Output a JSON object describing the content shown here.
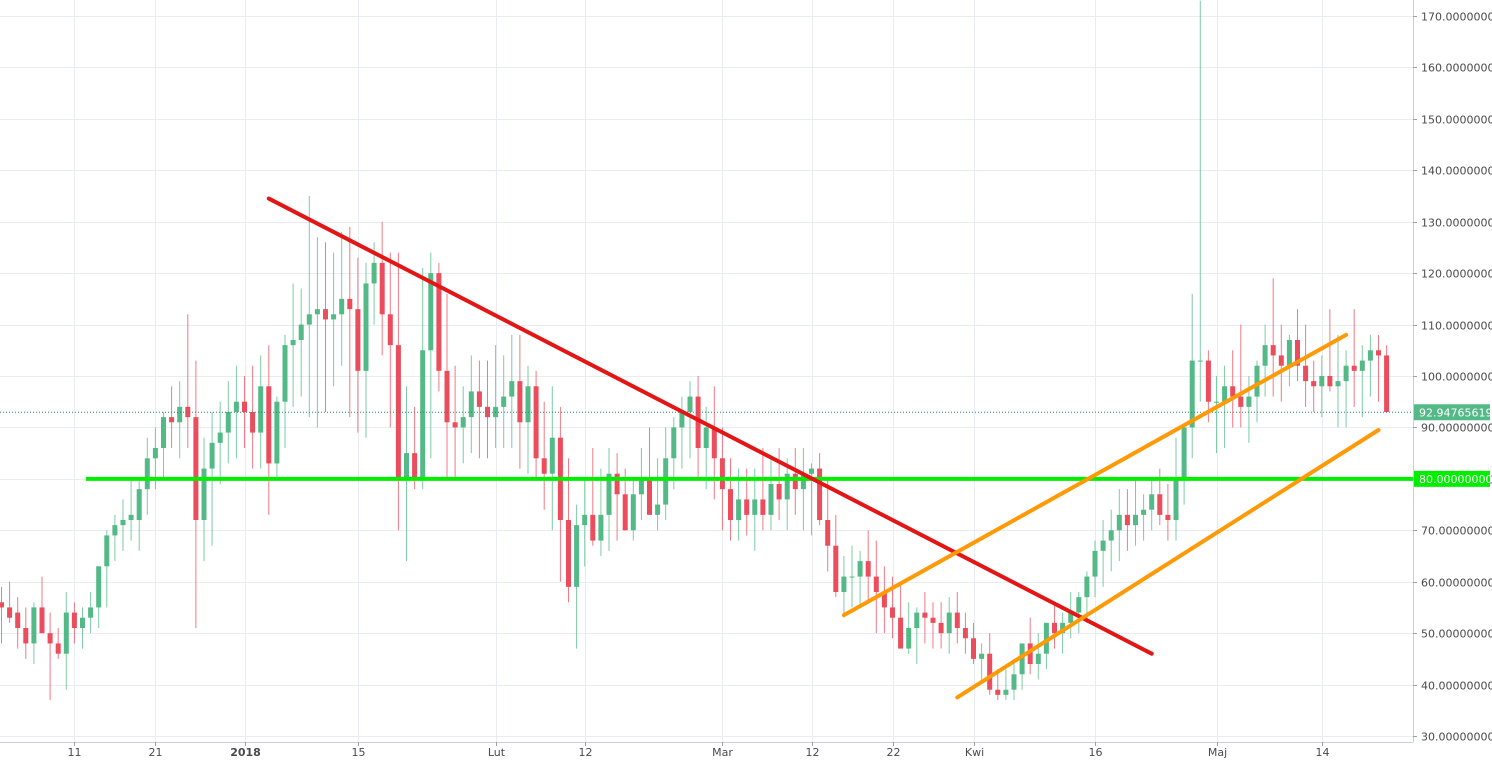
{
  "chart_data": {
    "type": "candlestick",
    "title": "",
    "xlabel": "",
    "ylabel": "",
    "ylim": [
      28,
      173
    ],
    "grid": true,
    "y_ticks": [
      {
        "value": 30,
        "label": "30.00000000"
      },
      {
        "value": 40,
        "label": "40.00000000"
      },
      {
        "value": 50,
        "label": "50.00000000"
      },
      {
        "value": 60,
        "label": "60.00000000"
      },
      {
        "value": 70,
        "label": "70.00000000"
      },
      {
        "value": 80,
        "label": "80.00000000"
      },
      {
        "value": 90,
        "label": "90.00000000"
      },
      {
        "value": 100,
        "label": "100.00000000"
      },
      {
        "value": 110,
        "label": "110.00000000"
      },
      {
        "value": 120,
        "label": "120.00000000"
      },
      {
        "value": 130,
        "label": "130.00000000"
      },
      {
        "value": 140,
        "label": "140.00000000"
      },
      {
        "value": 150,
        "label": "150.00000000"
      },
      {
        "value": 160,
        "label": "160.00000000"
      },
      {
        "value": 170,
        "label": "170.00000000"
      }
    ],
    "x_ticks": [
      {
        "index": 9,
        "label": "11",
        "bold": false
      },
      {
        "index": 19,
        "label": "21",
        "bold": false
      },
      {
        "index": 30,
        "label": "2018",
        "bold": true
      },
      {
        "index": 44,
        "label": "15",
        "bold": false
      },
      {
        "index": 61,
        "label": "Lut",
        "bold": false
      },
      {
        "index": 72,
        "label": "12",
        "bold": false
      },
      {
        "index": 89,
        "label": "Mar",
        "bold": false
      },
      {
        "index": 100,
        "label": "12",
        "bold": false
      },
      {
        "index": 110,
        "label": "22",
        "bold": false
      },
      {
        "index": 120,
        "label": "Kwi",
        "bold": false
      },
      {
        "index": 135,
        "label": "16",
        "bold": false
      },
      {
        "index": 150,
        "label": "Maj",
        "bold": false
      },
      {
        "index": 163,
        "label": "14",
        "bold": false
      }
    ],
    "colors": {
      "up": "#53b987",
      "down": "#eb4d5c",
      "grid": "#e9edf2",
      "axis_text": "#4a4a4a",
      "support": "#00ee00",
      "downtrend": "#e41515",
      "channel": "#ff9a06",
      "price_line": "#1e8b6e",
      "price_tag": "#53b987",
      "support_tag": "#00ee00"
    },
    "candles_ohlc": [
      [
        56,
        59,
        48,
        55
      ],
      [
        55,
        60,
        52,
        53
      ],
      [
        54,
        57,
        47,
        51
      ],
      [
        51,
        55,
        45,
        48
      ],
      [
        48,
        56,
        44,
        55
      ],
      [
        55,
        61,
        52,
        50
      ],
      [
        50,
        54,
        37,
        48
      ],
      [
        48,
        51,
        45,
        46
      ],
      [
        46,
        58,
        39,
        54
      ],
      [
        54,
        56,
        48,
        51
      ],
      [
        51,
        55,
        47,
        53
      ],
      [
        53,
        58,
        50,
        55
      ],
      [
        55,
        62,
        51,
        63
      ],
      [
        63,
        70,
        55,
        69
      ],
      [
        69,
        73,
        64,
        71
      ],
      [
        71,
        76,
        66,
        72
      ],
      [
        72,
        80,
        68,
        73
      ],
      [
        72,
        80,
        66,
        78
      ],
      [
        78,
        88,
        73,
        84
      ],
      [
        84,
        90,
        78,
        86
      ],
      [
        86,
        93,
        80,
        92
      ],
      [
        92,
        98,
        86,
        91
      ],
      [
        91,
        99,
        84,
        94
      ],
      [
        94,
        112,
        86,
        92
      ],
      [
        92,
        103,
        51,
        72
      ],
      [
        72,
        88,
        64,
        82
      ],
      [
        82,
        93,
        67,
        87
      ],
      [
        87,
        95,
        79,
        89
      ],
      [
        89,
        99,
        83,
        93
      ],
      [
        93,
        102,
        84,
        95
      ],
      [
        95,
        100,
        86,
        93
      ],
      [
        93,
        102,
        82,
        89
      ],
      [
        89,
        104,
        82,
        98
      ],
      [
        98,
        106,
        73,
        83
      ],
      [
        83,
        96,
        80,
        95
      ],
      [
        95,
        108,
        86,
        106
      ],
      [
        106,
        118,
        94,
        107
      ],
      [
        107,
        117,
        96,
        110
      ],
      [
        110,
        135,
        92,
        112
      ],
      [
        112,
        127,
        90,
        113
      ],
      [
        113,
        126,
        93,
        111
      ],
      [
        111,
        124,
        98,
        112
      ],
      [
        112,
        128,
        102,
        115
      ],
      [
        115,
        129,
        92,
        113
      ],
      [
        113,
        123,
        89,
        101
      ],
      [
        101,
        122,
        88,
        118
      ],
      [
        118,
        126,
        110,
        122
      ],
      [
        122,
        130,
        104,
        112
      ],
      [
        112,
        124,
        90,
        106
      ],
      [
        106,
        124,
        70,
        80
      ],
      [
        80,
        98,
        64,
        85
      ],
      [
        85,
        94,
        78,
        80
      ],
      [
        80,
        121,
        78,
        105
      ],
      [
        105,
        124,
        84,
        120
      ],
      [
        120,
        122,
        97,
        101
      ],
      [
        101,
        116,
        80,
        91
      ],
      [
        91,
        102,
        80,
        90
      ],
      [
        90,
        98,
        83,
        92
      ],
      [
        92,
        104,
        85,
        97
      ],
      [
        97,
        103,
        84,
        94
      ],
      [
        94,
        103,
        84,
        92
      ],
      [
        92,
        106,
        86,
        94
      ],
      [
        94,
        104,
        86,
        96
      ],
      [
        96,
        108,
        86,
        99
      ],
      [
        99,
        108,
        82,
        91
      ],
      [
        91,
        102,
        81,
        98
      ],
      [
        98,
        101,
        80,
        84
      ],
      [
        84,
        95,
        74,
        81
      ],
      [
        81,
        98,
        70,
        88
      ],
      [
        88,
        94,
        60,
        72
      ],
      [
        72,
        84,
        56,
        59
      ],
      [
        59,
        75,
        47,
        71
      ],
      [
        71,
        80,
        63,
        73
      ],
      [
        73,
        86,
        67,
        68
      ],
      [
        68,
        82,
        65,
        73
      ],
      [
        73,
        86,
        66,
        81
      ],
      [
        81,
        85,
        68,
        77
      ],
      [
        77,
        82,
        70,
        70
      ],
      [
        70,
        80,
        68,
        77
      ],
      [
        77,
        86,
        72,
        80
      ],
      [
        80,
        90,
        75,
        73
      ],
      [
        73,
        84,
        70,
        75
      ],
      [
        75,
        90,
        72,
        84
      ],
      [
        84,
        92,
        78,
        90
      ],
      [
        90,
        96,
        82,
        93
      ],
      [
        93,
        99,
        84,
        96
      ],
      [
        96,
        100,
        80,
        86
      ],
      [
        86,
        94,
        78,
        90
      ],
      [
        90,
        98,
        76,
        84
      ],
      [
        84,
        90,
        70,
        78
      ],
      [
        78,
        84,
        68,
        72
      ],
      [
        72,
        82,
        68,
        76
      ],
      [
        76,
        82,
        69,
        73
      ],
      [
        73,
        82,
        66,
        76
      ],
      [
        76,
        86,
        70,
        73
      ],
      [
        73,
        84,
        70,
        79
      ],
      [
        79,
        86,
        72,
        76
      ],
      [
        76,
        84,
        70,
        81
      ],
      [
        81,
        86,
        73,
        78
      ],
      [
        78,
        86,
        70,
        81
      ],
      [
        81,
        83,
        69,
        82
      ],
      [
        82,
        85,
        71,
        72
      ],
      [
        72,
        80,
        62,
        67
      ],
      [
        67,
        73,
        57,
        58
      ],
      [
        58,
        65,
        53,
        61
      ],
      [
        61,
        67,
        55,
        61
      ],
      [
        61,
        66,
        55,
        64
      ],
      [
        64,
        70,
        56,
        61
      ],
      [
        61,
        68,
        50,
        58
      ],
      [
        58,
        63,
        50,
        55
      ],
      [
        55,
        61,
        49,
        53
      ],
      [
        53,
        60,
        47,
        47
      ],
      [
        47,
        56,
        46,
        51
      ],
      [
        51,
        55,
        44,
        54
      ],
      [
        54,
        58,
        48,
        53
      ],
      [
        53,
        56,
        47,
        52
      ],
      [
        52,
        56,
        47,
        50
      ],
      [
        50,
        57,
        46,
        54
      ],
      [
        54,
        58,
        48,
        51
      ],
      [
        51,
        54,
        46,
        49
      ],
      [
        49,
        52,
        44,
        45
      ],
      [
        45,
        48,
        41,
        46
      ],
      [
        46,
        50,
        38,
        39
      ],
      [
        39,
        43,
        37,
        38
      ],
      [
        38,
        43,
        37,
        39
      ],
      [
        39,
        45,
        37,
        42
      ],
      [
        42,
        46,
        39,
        48
      ],
      [
        48,
        53,
        42,
        44
      ],
      [
        44,
        50,
        41,
        46
      ],
      [
        46,
        52,
        43,
        52
      ],
      [
        52,
        56,
        47,
        50
      ],
      [
        50,
        54,
        46,
        52
      ],
      [
        52,
        58,
        49,
        54
      ],
      [
        54,
        58,
        50,
        57
      ],
      [
        57,
        62,
        52,
        61
      ],
      [
        61,
        68,
        57,
        66
      ],
      [
        66,
        72,
        59,
        68
      ],
      [
        68,
        74,
        62,
        70
      ],
      [
        70,
        78,
        64,
        73
      ],
      [
        73,
        78,
        66,
        71
      ],
      [
        71,
        80,
        67,
        73
      ],
      [
        73,
        77,
        68,
        74
      ],
      [
        74,
        80,
        70,
        77
      ],
      [
        77,
        82,
        71,
        73
      ],
      [
        73,
        79,
        68,
        72
      ],
      [
        72,
        88,
        68,
        80
      ],
      [
        80,
        90,
        75,
        90
      ],
      [
        90,
        116,
        84,
        103
      ],
      [
        103,
        173,
        95,
        103
      ],
      [
        103,
        105,
        91,
        95
      ],
      [
        95,
        100,
        85,
        95
      ],
      [
        95,
        102,
        86,
        98
      ],
      [
        98,
        105,
        90,
        96
      ],
      [
        96,
        110,
        90,
        94
      ],
      [
        94,
        100,
        87,
        96
      ],
      [
        96,
        103,
        91,
        102
      ],
      [
        102,
        110,
        96,
        106
      ],
      [
        106,
        119,
        96,
        104
      ],
      [
        104,
        110,
        95,
        102
      ],
      [
        102,
        108,
        98,
        107
      ],
      [
        107,
        113,
        99,
        102
      ],
      [
        102,
        110,
        94,
        99
      ],
      [
        99,
        103,
        93,
        98
      ],
      [
        98,
        104,
        92,
        100
      ],
      [
        100,
        113,
        97,
        98
      ],
      [
        98,
        108,
        90,
        99
      ],
      [
        99,
        105,
        90,
        102
      ],
      [
        102,
        113,
        94,
        101
      ],
      [
        101,
        106,
        92,
        103
      ],
      [
        103,
        108,
        96,
        105
      ],
      [
        105,
        108,
        95,
        104
      ],
      [
        104,
        106,
        95,
        93
      ]
    ],
    "support_level": {
      "value": 80,
      "label": "80.00000000"
    },
    "last_price": {
      "value": 92.94765619,
      "label": "92.94765619"
    },
    "trendlines": [
      {
        "name": "downtrend",
        "color": "downtrend",
        "from": {
          "index": 33,
          "value": 134.5
        },
        "to": {
          "index": 142,
          "value": 46
        }
      },
      {
        "name": "channel-upper",
        "color": "channel",
        "from": {
          "index": 104,
          "value": 53.5
        },
        "to": {
          "index": 166,
          "value": 108
        }
      },
      {
        "name": "channel-lower",
        "color": "channel",
        "from": {
          "index": 118,
          "value": 37.5
        },
        "to": {
          "index": 170,
          "value": 89.5
        }
      }
    ]
  }
}
